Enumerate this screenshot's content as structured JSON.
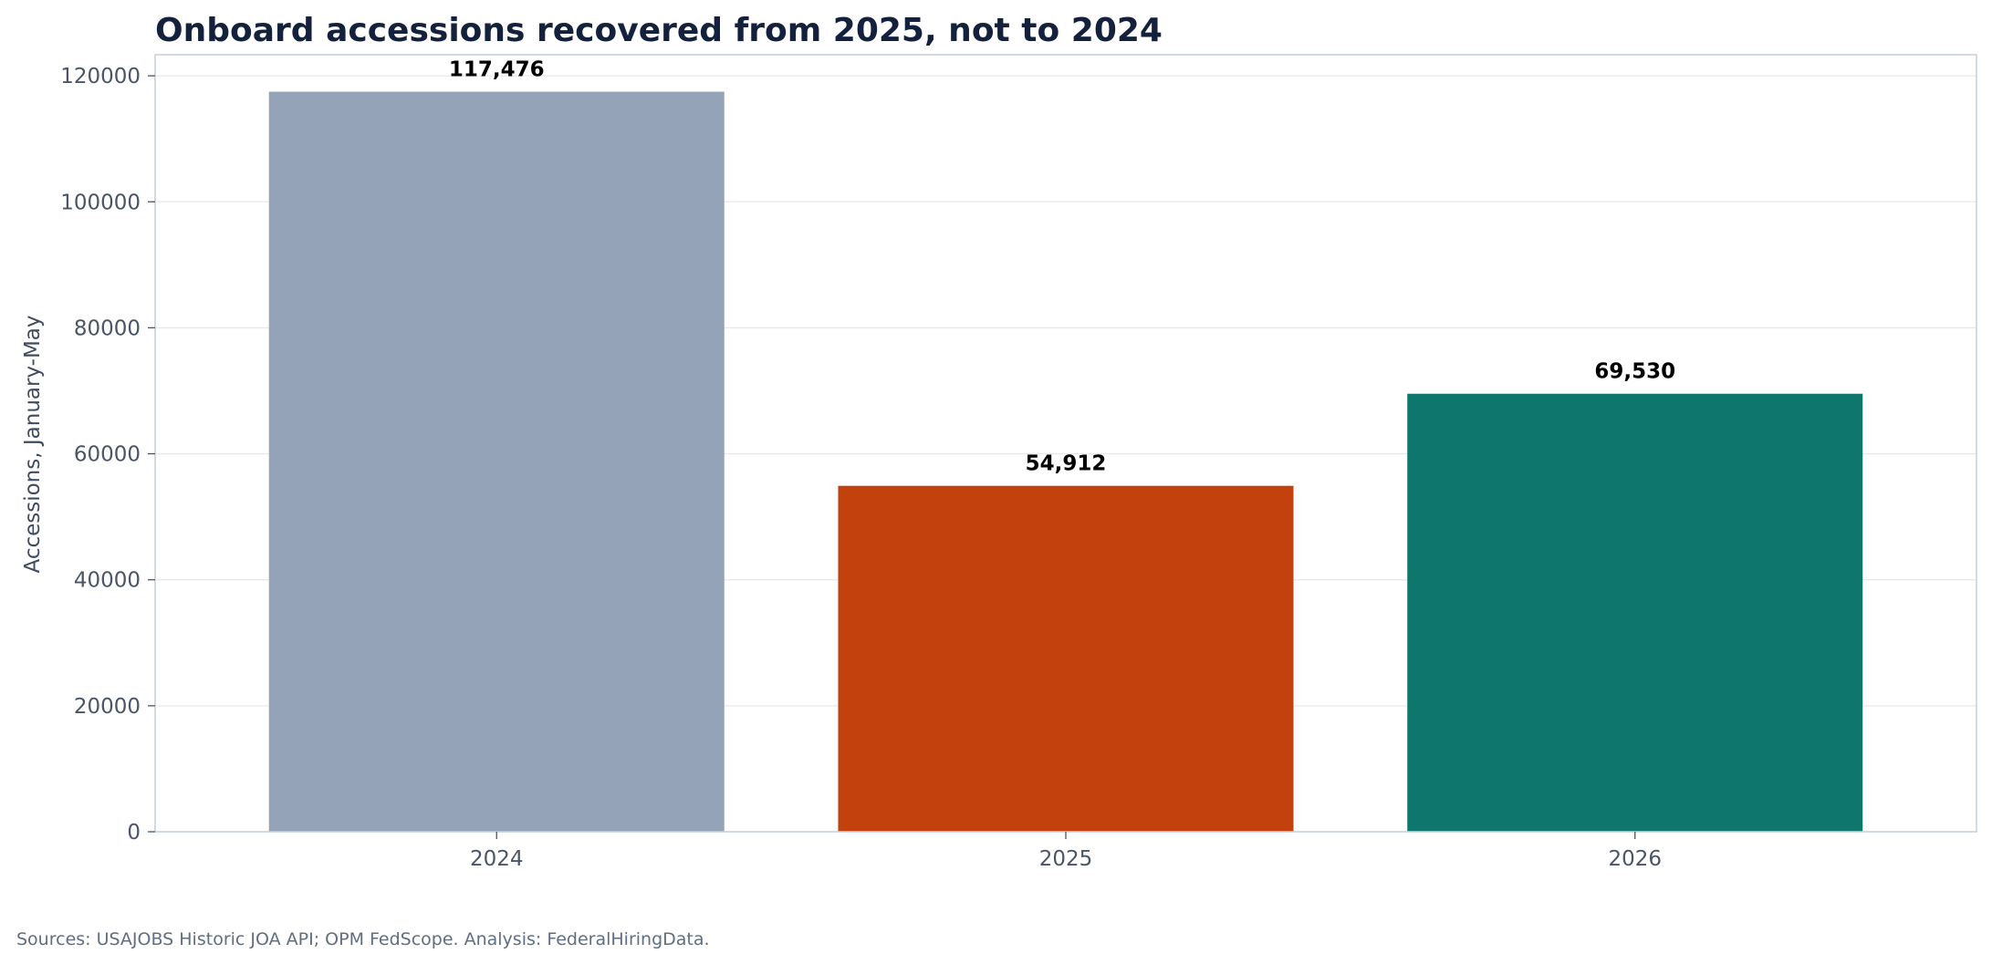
{
  "chart_data": {
    "type": "bar",
    "title": "Onboard accessions recovered from 2025, not to 2024",
    "xlabel": "",
    "ylabel": "Accessions, January-May",
    "categories": [
      "2024",
      "2025",
      "2026"
    ],
    "values": [
      117476,
      54912,
      69530
    ],
    "value_labels": [
      "117,476",
      "54,912",
      "69,530"
    ],
    "bar_colors": [
      "#94a3b8",
      "#c2410c",
      "#0f766e"
    ],
    "ylim": [
      0,
      123347
    ],
    "yticks": [
      0,
      20000,
      40000,
      60000,
      80000,
      100000,
      120000
    ],
    "ytick_labels": [
      "0",
      "20000",
      "40000",
      "60000",
      "80000",
      "100000",
      "120000"
    ],
    "grid": true,
    "legend": "none"
  },
  "footer": {
    "source": "Sources: USAJOBS Historic JOA API; OPM FedScope. Analysis: FederalHiringData."
  }
}
